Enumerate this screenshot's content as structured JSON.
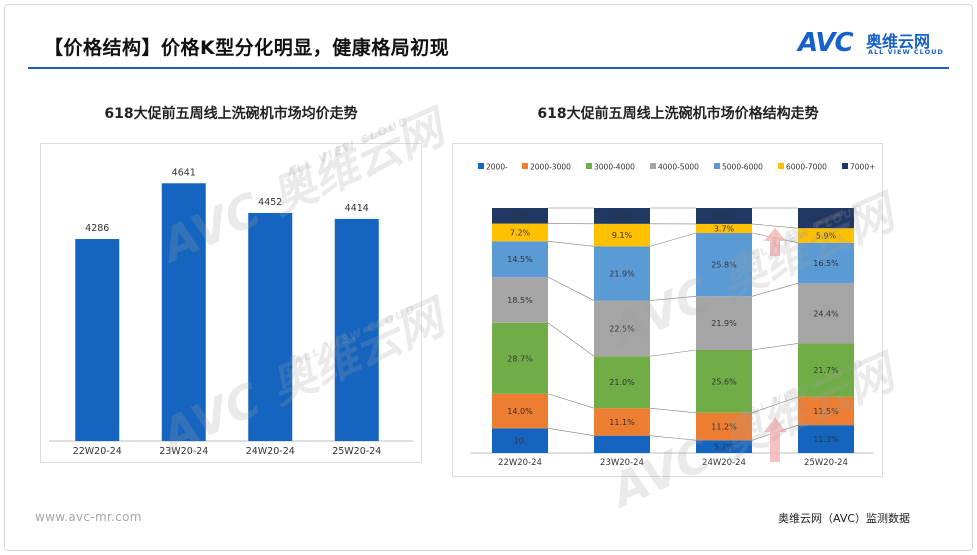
{
  "slide": {
    "title": "【价格结构】价格K型分化明显，健康格局初现",
    "footer_url": "www.avc-mr.com",
    "footer_source": "奥维云网（AVC）监测数据"
  },
  "logo": {
    "brand": "AVC",
    "cn_name": "奥维云网",
    "en_name": "ALL VIEW CLOUD"
  },
  "watermark": {
    "text": "AVC 奥维云网",
    "subtext": "ALL VIEW CLOUD"
  },
  "colors": {
    "title_rule": "#1f5fb8",
    "bar_blue": "#1565c0",
    "arrow": "#f4b6b6"
  },
  "chart_data": [
    {
      "type": "bar",
      "title": "618大促前五周线上洗碗机市场均价走势",
      "categories": [
        "22W20-24",
        "23W20-24",
        "24W20-24",
        "25W20-24"
      ],
      "values": [
        4286,
        4641,
        4452,
        4414
      ],
      "data_labels": [
        "4286",
        "4641",
        "4452",
        "4414"
      ],
      "xlabel": "",
      "ylabel": "",
      "ylim": [
        3000,
        4700
      ],
      "grid": false,
      "legend": "none",
      "color": "#1565c0"
    },
    {
      "type": "bar",
      "stacked": "100%",
      "title": "618大促前五周线上洗碗机市场价格结构走势",
      "categories": [
        "22W20-24",
        "23W20-24",
        "24W20-24",
        "25W20-24"
      ],
      "legend": "top",
      "series": [
        {
          "name": "2000-",
          "color": "#1565c0",
          "values": [
            10.0,
            7.0,
            5.2,
            11.3
          ],
          "labels": [
            "10.",
            "",
            "5.2%",
            "11.3%"
          ]
        },
        {
          "name": "2000-3000",
          "color": "#ed7d31",
          "values": [
            14.0,
            11.1,
            11.2,
            11.5
          ],
          "labels": [
            "14.0%",
            "11.1%",
            "11.2%",
            "11.5%"
          ]
        },
        {
          "name": "3000-4000",
          "color": "#70ad47",
          "values": [
            28.7,
            21.0,
            25.6,
            21.7
          ],
          "labels": [
            "28.7%",
            "21.0%",
            "25.6%",
            "21.7%"
          ]
        },
        {
          "name": "4000-5000",
          "color": "#a5a5a5",
          "values": [
            18.5,
            22.5,
            21.9,
            24.4
          ],
          "labels": [
            "18.5%",
            "22.5%",
            "21.9%",
            "24.4%"
          ]
        },
        {
          "name": "5000-6000",
          "color": "#5b9bd5",
          "values": [
            14.5,
            21.9,
            25.8,
            16.5
          ],
          "labels": [
            "14.5%",
            "21.9%",
            "25.8%",
            "16.5%"
          ]
        },
        {
          "name": "6000-7000",
          "color": "#ffc000",
          "values": [
            7.2,
            9.1,
            3.7,
            5.9
          ],
          "labels": [
            "7.2%",
            "9.1%",
            "3.7%",
            "5.9%"
          ]
        },
        {
          "name": "7000+",
          "color": "#1f3864",
          "values": [
            6.3,
            6.4,
            6.5,
            8.2
          ],
          "labels": [
            "6.3%",
            "6.4%",
            "6.5%",
            "8.2%"
          ]
        }
      ]
    }
  ]
}
